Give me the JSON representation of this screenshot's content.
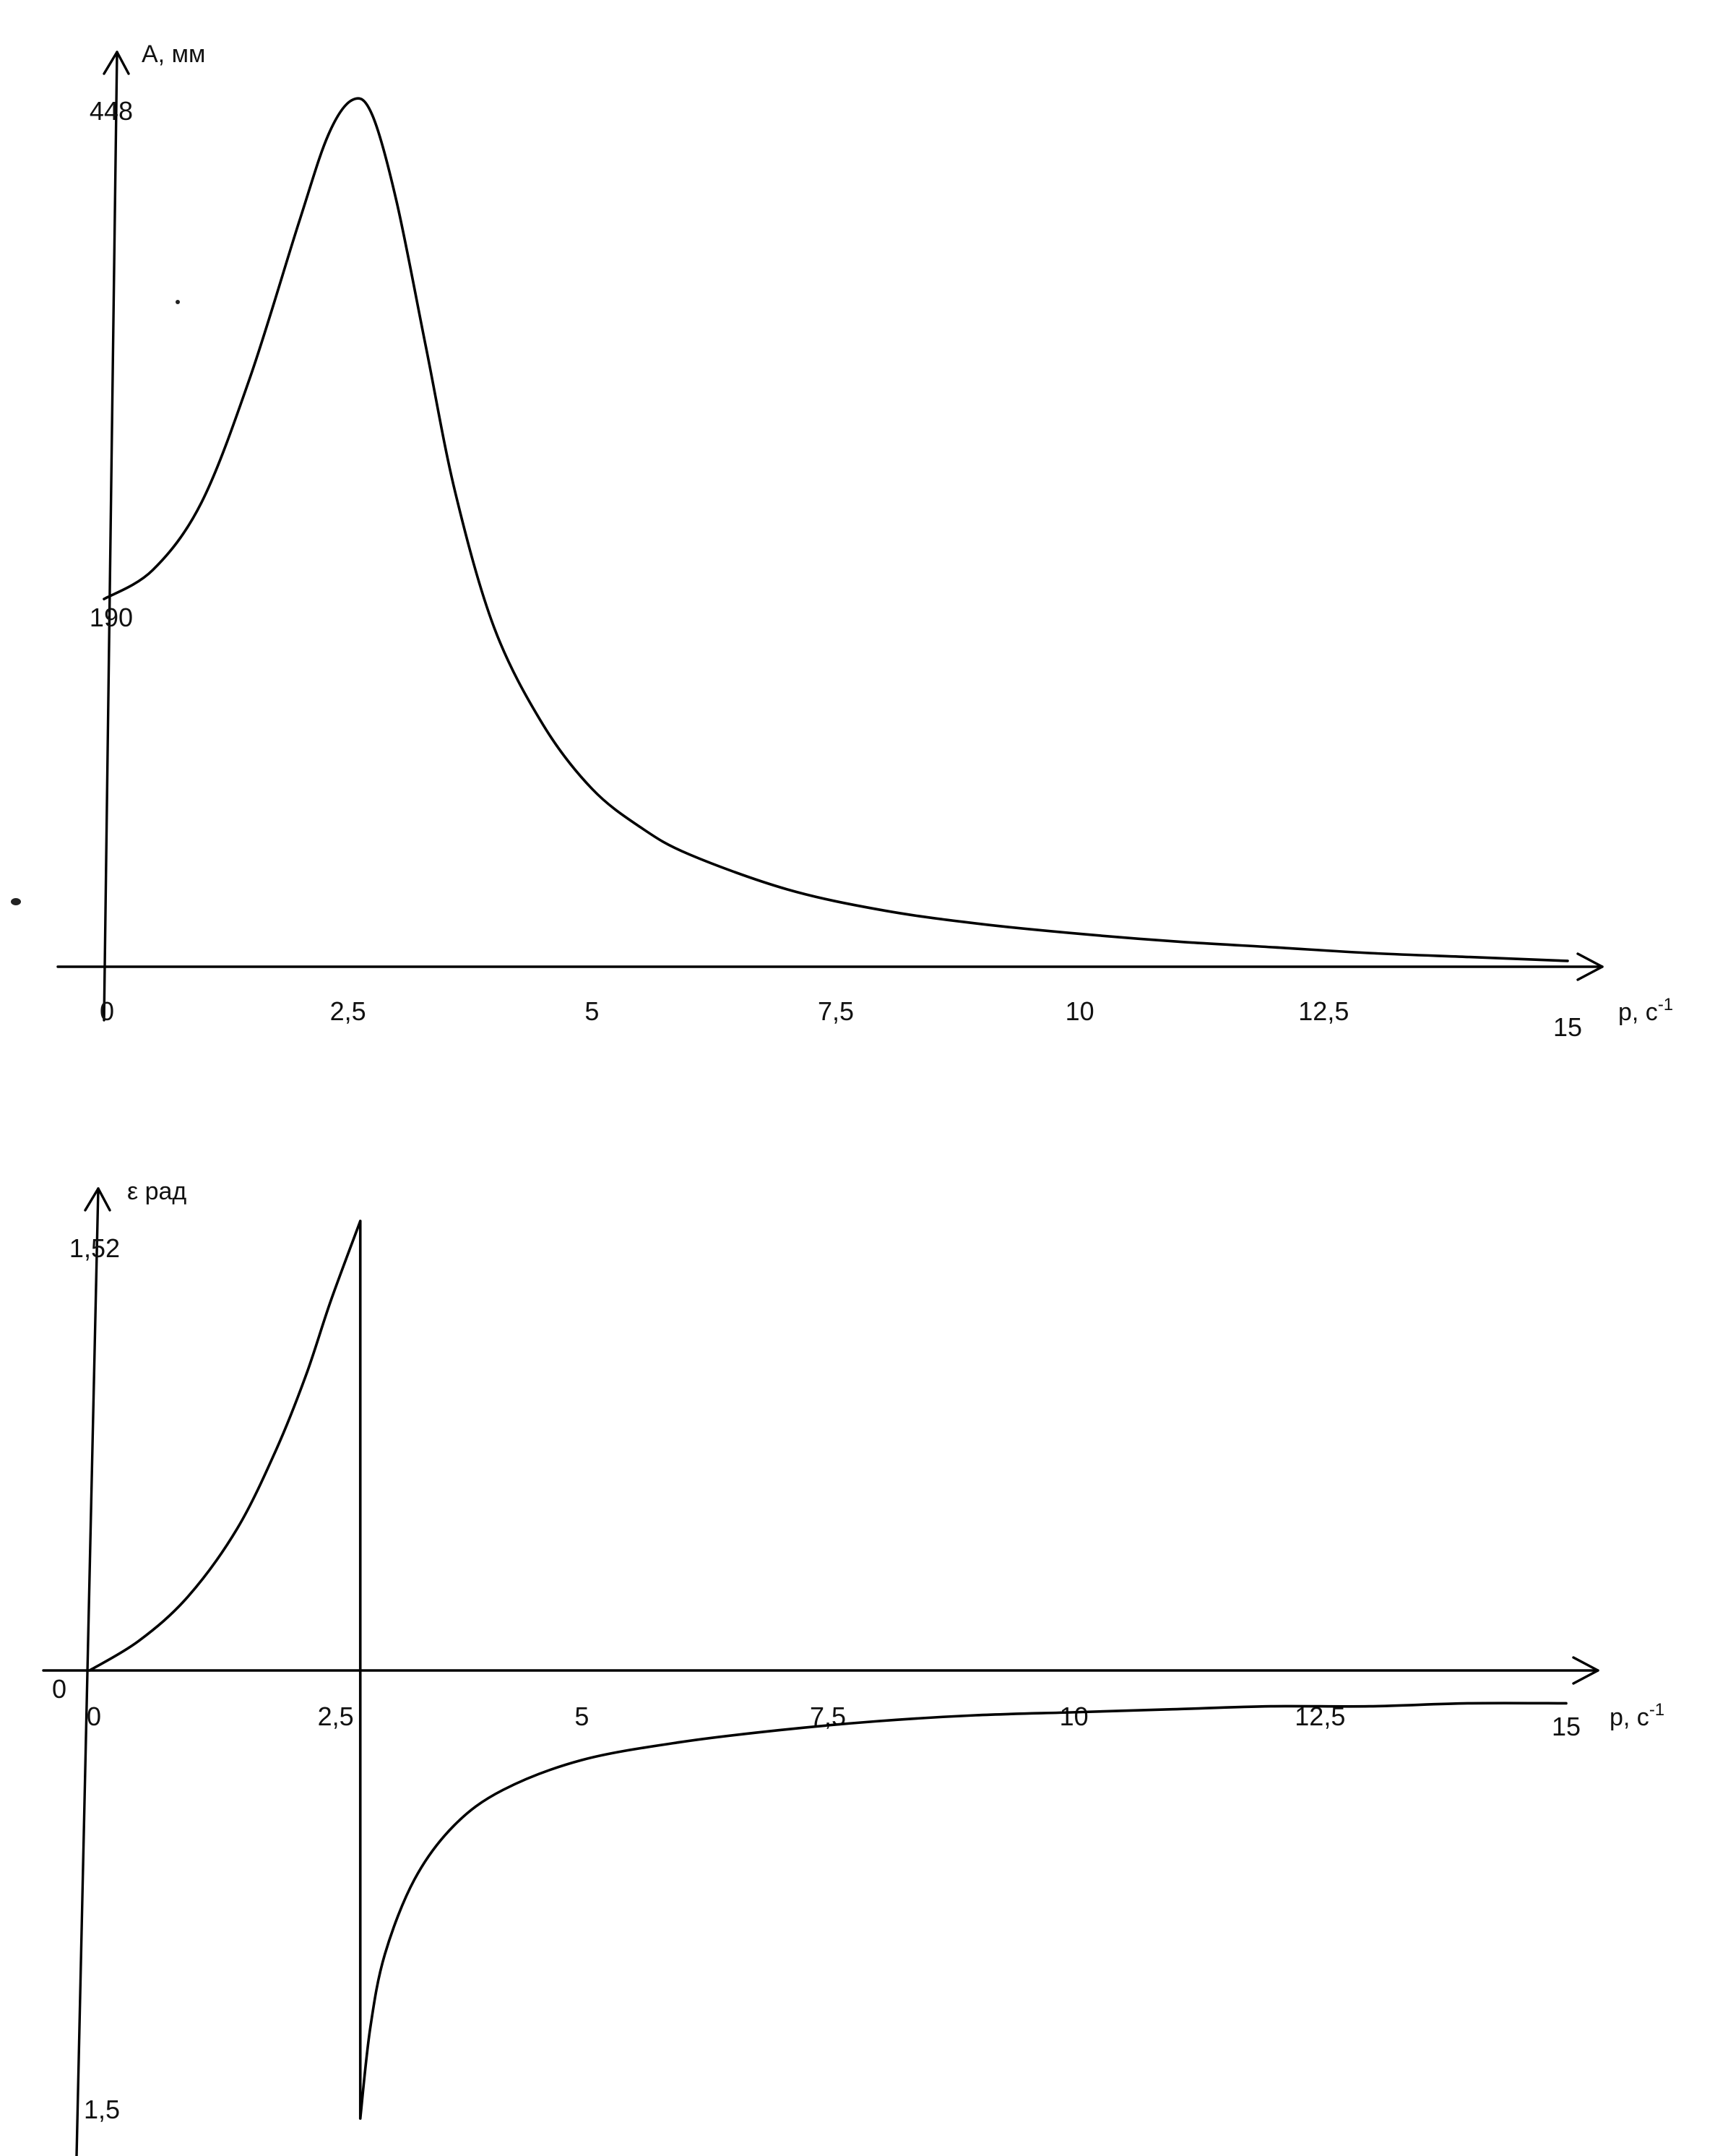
{
  "chart_data": [
    {
      "type": "line",
      "title": "",
      "xlabel": "p, c",
      "xlabel_superscript": "-1",
      "ylabel": "A, мм",
      "xlim": [
        0,
        15
      ],
      "ylim": [
        0,
        448
      ],
      "grid": false,
      "x_ticks": [
        "0",
        "2,5",
        "5",
        "7,5",
        "10",
        "12,5",
        "15"
      ],
      "y_ticks": [
        "190",
        "448"
      ],
      "y_tick_values": [
        190,
        448
      ],
      "series": [
        {
          "x": [
            0,
            0.5,
            1.0,
            1.5,
            2.0,
            2.3,
            2.55,
            2.75,
            3.0,
            3.3,
            3.6,
            4.0,
            4.5,
            5.0,
            5.5,
            6.0,
            7.0,
            8.0,
            9.0,
            10.0,
            11.0,
            12.0,
            13.0,
            14.0,
            15.0
          ],
          "y": [
            190,
            205,
            240,
            305,
            385,
            430,
            448,
            440,
            395,
            320,
            245,
            175,
            125,
            92,
            72,
            58,
            40,
            29,
            22,
            17,
            13,
            10,
            7,
            5,
            3
          ]
        }
      ]
    },
    {
      "type": "line",
      "title": "",
      "xlabel": "p, c",
      "xlabel_superscript": "-1",
      "ylabel": "ε рад",
      "xlim": [
        0,
        15
      ],
      "ylim": [
        -1.5,
        1.52
      ],
      "grid": false,
      "origin_label": "0",
      "x_ticks": [
        "0",
        "2,5",
        "5",
        "7,5",
        "10",
        "12,5",
        "15"
      ],
      "y_ticks": [
        "1,52",
        "1,5"
      ],
      "y_tick_values": [
        1.52,
        -1.5
      ],
      "series": [
        {
          "x": [
            0,
            0.5,
            1.0,
            1.5,
            1.9,
            2.2,
            2.45,
            2.75,
            2.75,
            2.85,
            3.0,
            3.3,
            3.7,
            4.2,
            5.0,
            6.0,
            7.0,
            8.0,
            9.0,
            10.0,
            11.0,
            12.0,
            13.0,
            14.0,
            15.0
          ],
          "y": [
            0,
            0.1,
            0.25,
            0.48,
            0.75,
            1.0,
            1.25,
            1.52,
            -1.5,
            -1.2,
            -0.95,
            -0.7,
            -0.52,
            -0.4,
            -0.3,
            -0.24,
            -0.2,
            -0.17,
            -0.15,
            -0.14,
            -0.13,
            -0.12,
            -0.12,
            -0.11,
            -0.11
          ]
        }
      ]
    }
  ]
}
